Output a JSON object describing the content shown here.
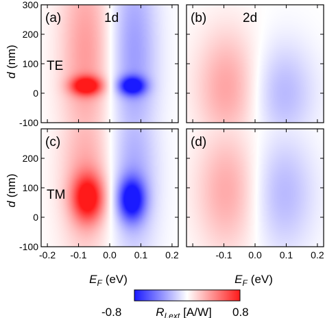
{
  "chart_data": {
    "type": "heatmap",
    "colormap": {
      "colors": [
        "#1a1aff",
        "#ffffff",
        "#ff1a1a"
      ],
      "range": [
        -0.8,
        0.8
      ],
      "min_label": "-0.8",
      "max_label": "0.8",
      "label_main": "R",
      "label_sub": "I,ext",
      "label_unit": "[A/W]"
    },
    "x_axis": {
      "range": [
        -0.22,
        0.22
      ],
      "ticks": [
        -0.2,
        -0.1,
        0.0,
        0.1,
        0.2
      ],
      "tick_labels": [
        "-0.2",
        "-0.1",
        "0.0",
        "0.1",
        "0.2"
      ],
      "label_main": "E",
      "label_sub": "F",
      "label_unit": "(eV)"
    },
    "y_axis": {
      "range": [
        -100,
        300
      ],
      "ticks": [
        -100,
        0,
        100,
        200,
        300
      ],
      "tick_labels": [
        "-100",
        "0",
        "100",
        "200",
        "300"
      ],
      "label_main": "d",
      "label_unit": "(nm)"
    },
    "panels": [
      {
        "tag": "(a)",
        "corner": "1d",
        "mode": "TE",
        "row": 0,
        "col": 0,
        "features": [
          {
            "x": -0.075,
            "y": 25,
            "amp": 0.8,
            "sx": 0.035,
            "sy": 22
          },
          {
            "x": -0.075,
            "y": 130,
            "amp": 0.35,
            "sx": 0.06,
            "sy": 260
          },
          {
            "x": 0.072,
            "y": 25,
            "amp": -0.8,
            "sx": 0.03,
            "sy": 22
          },
          {
            "x": 0.075,
            "y": 130,
            "amp": -0.35,
            "sx": 0.055,
            "sy": 260
          }
        ]
      },
      {
        "tag": "(b)",
        "corner": "2d",
        "mode": "",
        "row": 0,
        "col": 1,
        "features": [
          {
            "x": -0.09,
            "y": 20,
            "amp": 0.32,
            "sx": 0.07,
            "sy": 140
          },
          {
            "x": 0.09,
            "y": 0,
            "amp": -0.25,
            "sx": 0.07,
            "sy": 120
          }
        ]
      },
      {
        "tag": "(c)",
        "corner": "",
        "mode": "TM",
        "row": 1,
        "col": 0,
        "features": [
          {
            "x": -0.07,
            "y": 65,
            "amp": 0.75,
            "sx": 0.035,
            "sy": 55
          },
          {
            "x": -0.075,
            "y": 150,
            "amp": 0.3,
            "sx": 0.06,
            "sy": 220
          },
          {
            "x": 0.07,
            "y": 60,
            "amp": -0.8,
            "sx": 0.03,
            "sy": 50
          },
          {
            "x": 0.075,
            "y": 150,
            "amp": -0.3,
            "sx": 0.055,
            "sy": 220
          }
        ]
      },
      {
        "tag": "(d)",
        "corner": "",
        "mode": "",
        "row": 1,
        "col": 1,
        "features": [
          {
            "x": -0.09,
            "y": 90,
            "amp": 0.3,
            "sx": 0.07,
            "sy": 150
          },
          {
            "x": 0.09,
            "y": 80,
            "amp": -0.25,
            "sx": 0.07,
            "sy": 140
          }
        ]
      }
    ]
  }
}
